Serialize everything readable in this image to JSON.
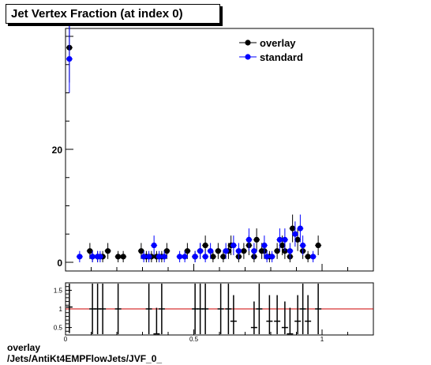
{
  "title": "Jet Vertex Fraction (at index 0)",
  "footer": {
    "line1": "overlay",
    "line2": "/Jets/AntiKt4EMPFlowJets/JVF_0_"
  },
  "colors": {
    "overlay": "#000000",
    "standard": "#0000ff",
    "ratio_line": "#cc0000"
  },
  "chart_data": [
    {
      "type": "scatter",
      "xlim": [
        0,
        1.2
      ],
      "ylim": [
        0,
        40
      ],
      "xticks": [],
      "yticks": [
        {
          "value": 0,
          "label": "0"
        },
        {
          "value": 20,
          "label": "20"
        }
      ],
      "legend": {
        "placement": "top-right",
        "entries": [
          "overlay",
          "standard"
        ]
      },
      "series": [
        {
          "name": "overlay",
          "x": [
            0.015,
            0.095,
            0.105,
            0.125,
            0.145,
            0.165,
            0.205,
            0.225,
            0.295,
            0.315,
            0.335,
            0.355,
            0.375,
            0.395,
            0.475,
            0.505,
            0.525,
            0.545,
            0.575,
            0.595,
            0.615,
            0.635,
            0.645,
            0.675,
            0.695,
            0.715,
            0.735,
            0.745,
            0.765,
            0.775,
            0.795,
            0.825,
            0.845,
            0.855,
            0.875,
            0.885,
            0.905,
            0.925,
            0.945,
            0.985
          ],
          "y": [
            38,
            2,
            1,
            1,
            1,
            2,
            1,
            1,
            2,
            1,
            1,
            1,
            1,
            2,
            2,
            1,
            2,
            3,
            1,
            2,
            1,
            2,
            3,
            1,
            2,
            3,
            1,
            4,
            2,
            2,
            1,
            2,
            3,
            2,
            1,
            6,
            4,
            2,
            1,
            3
          ]
        },
        {
          "name": "standard",
          "x": [
            0.015,
            0.055,
            0.105,
            0.125,
            0.135,
            0.305,
            0.325,
            0.345,
            0.365,
            0.385,
            0.445,
            0.465,
            0.505,
            0.525,
            0.545,
            0.565,
            0.625,
            0.655,
            0.675,
            0.715,
            0.735,
            0.775,
            0.785,
            0.805,
            0.835,
            0.855,
            0.875,
            0.895,
            0.915,
            0.925,
            0.965
          ],
          "y": [
            36,
            1,
            1,
            1,
            1,
            1,
            1,
            3,
            1,
            1,
            1,
            1,
            1,
            2,
            1,
            2,
            2,
            3,
            2,
            4,
            2,
            3,
            1,
            1,
            4,
            4,
            2,
            5,
            6,
            3,
            1
          ]
        }
      ]
    },
    {
      "type": "scatter",
      "xlim": [
        0,
        1.2
      ],
      "ylim": [
        0.3,
        1.7
      ],
      "xticks": [
        {
          "value": 0,
          "label": "0"
        },
        {
          "value": 0.5,
          "label": "0.5"
        },
        {
          "value": 1,
          "label": "1"
        }
      ],
      "yticks": [
        {
          "value": 0.5,
          "label": "0.5"
        },
        {
          "value": 1,
          "label": "1"
        },
        {
          "value": 1.5,
          "label": "1.5"
        }
      ],
      "reference_line": 1,
      "series": [
        {
          "name": "ratio",
          "x": [
            0.015,
            0.105,
            0.125,
            0.145,
            0.205,
            0.325,
            0.355,
            0.375,
            0.505,
            0.525,
            0.545,
            0.605,
            0.635,
            0.655,
            0.735,
            0.755,
            0.795,
            0.825,
            0.855,
            0.875,
            0.905,
            0.925,
            0.945,
            0.985
          ],
          "y": [
            1.05,
            1.0,
            1.0,
            1.0,
            1.0,
            1.0,
            0.33,
            1.0,
            1.0,
            1.0,
            1.0,
            1.0,
            1.0,
            0.67,
            0.5,
            1.0,
            0.67,
            0.67,
            0.5,
            0.33,
            0.67,
            1.0,
            0.67,
            1.0
          ]
        }
      ]
    }
  ]
}
